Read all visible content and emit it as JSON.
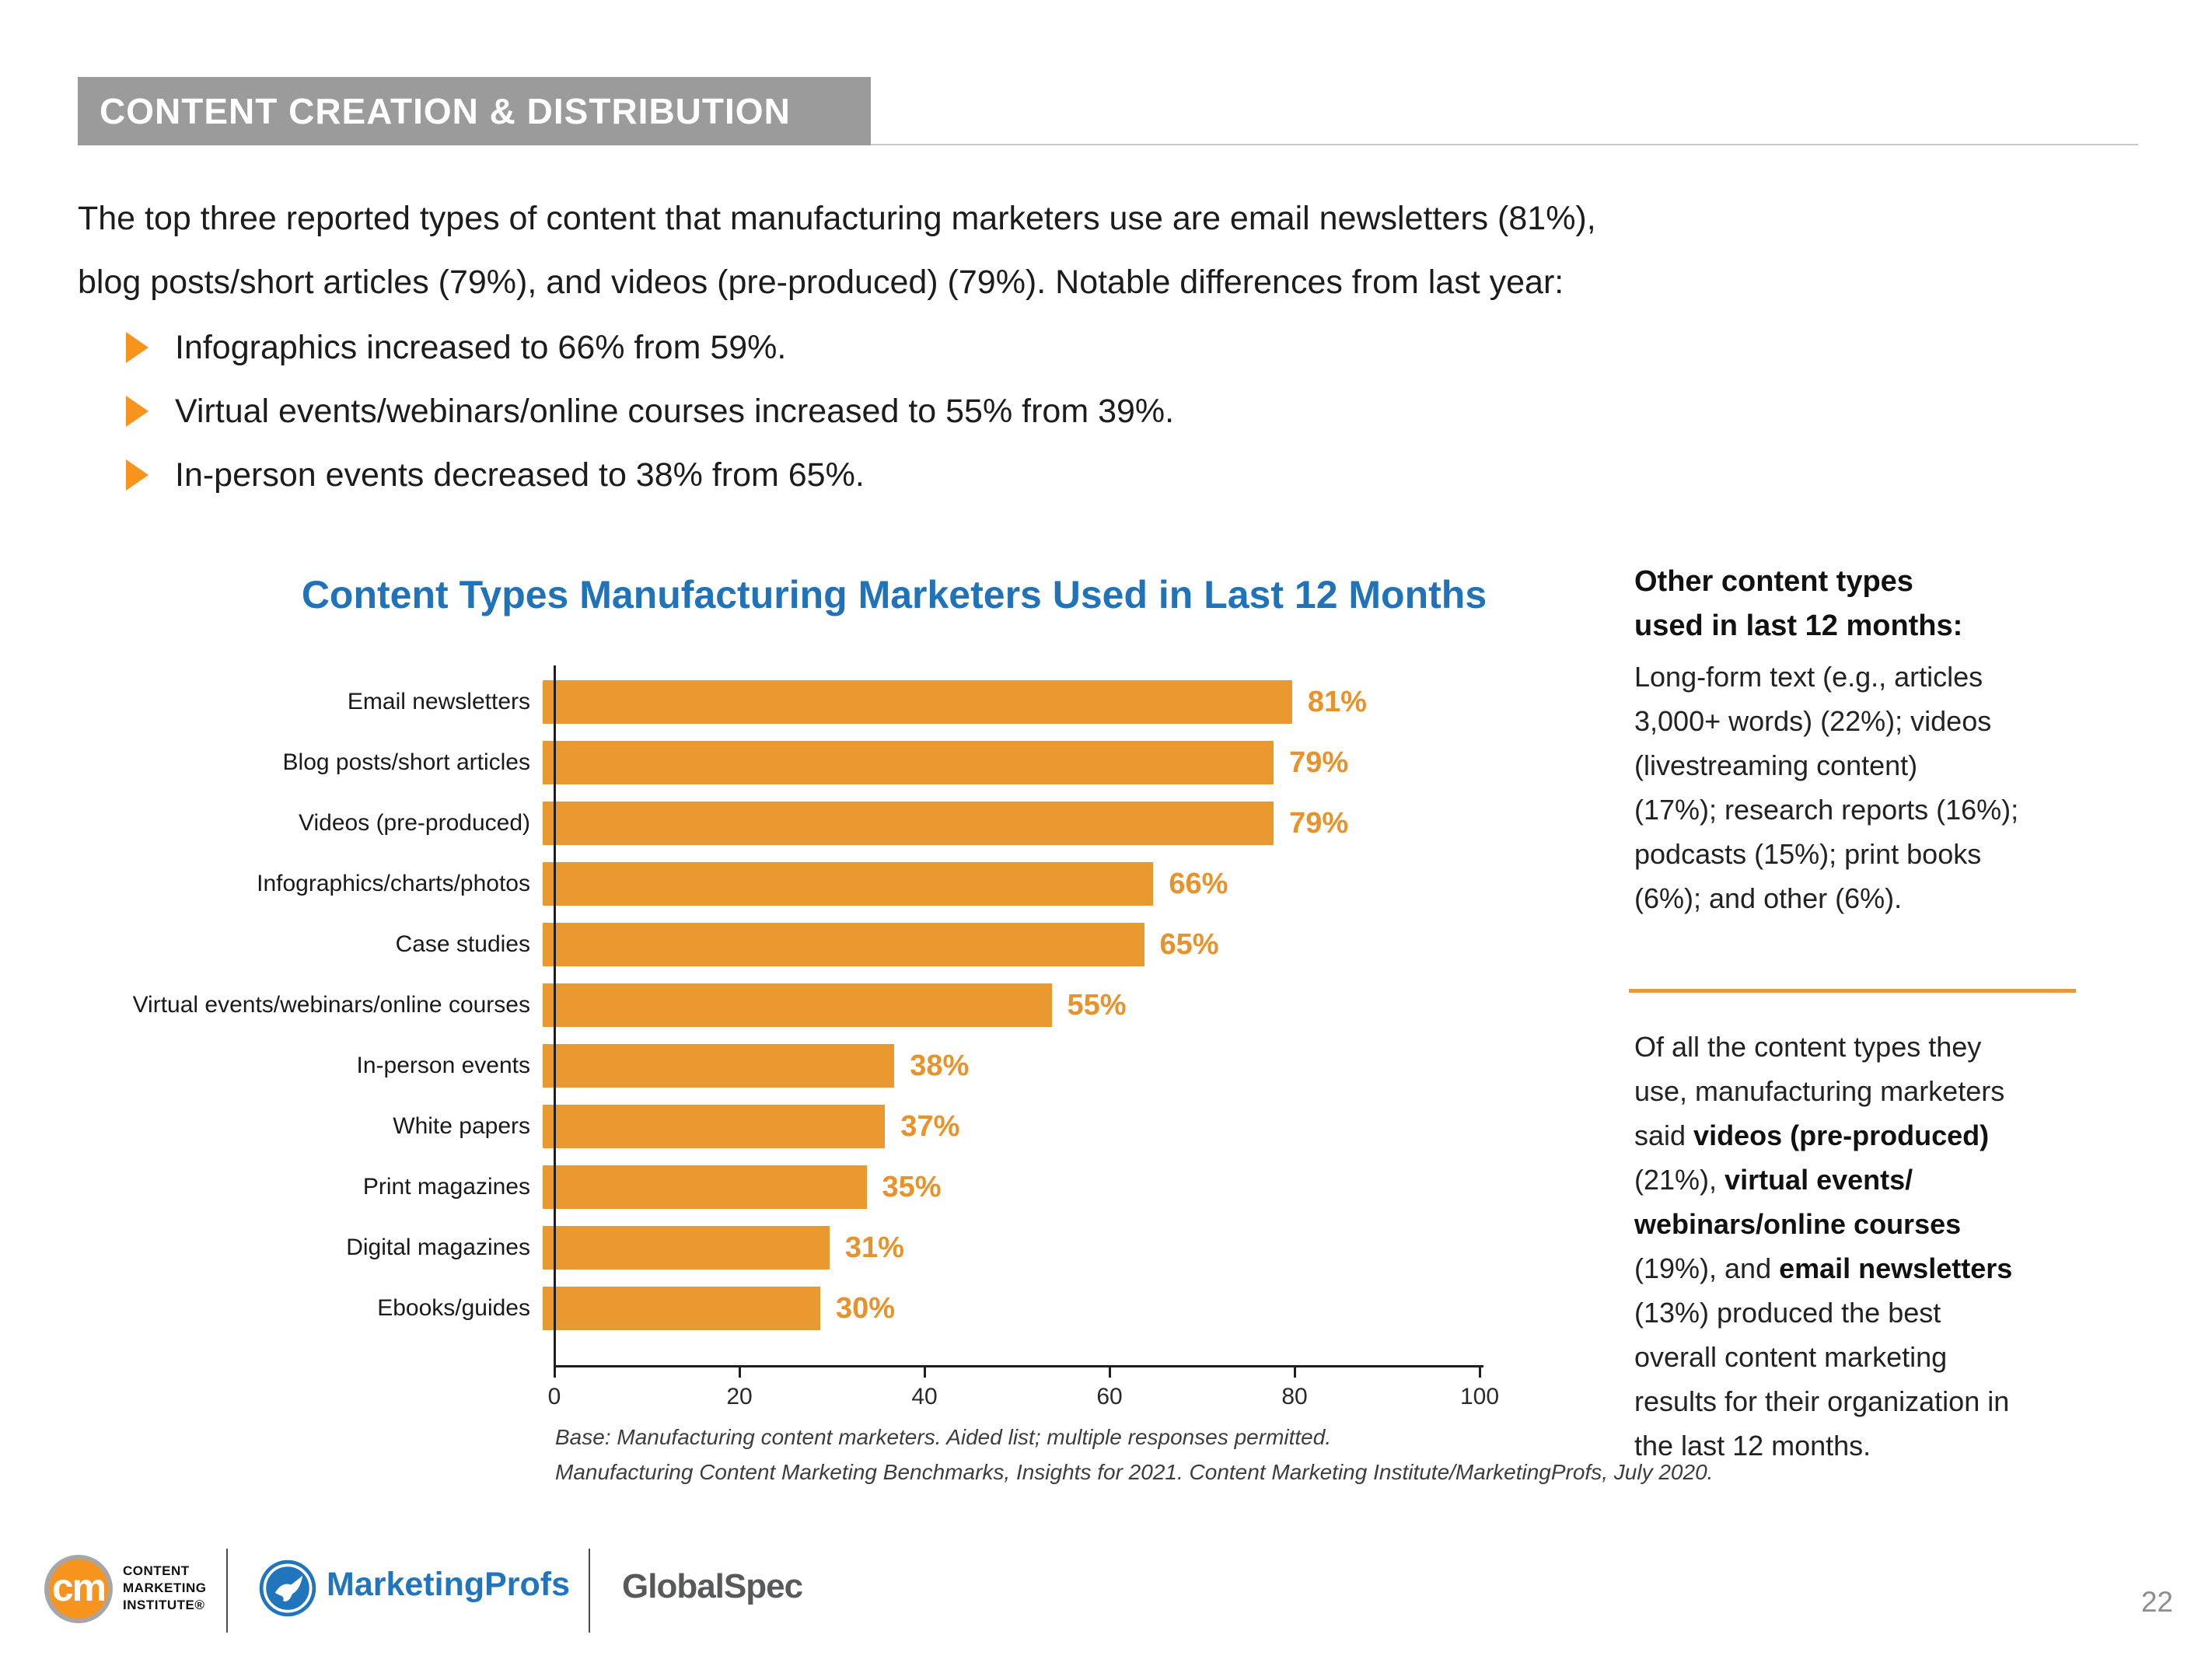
{
  "header": {
    "title": "CONTENT CREATION & DISTRIBUTION"
  },
  "intro_lines": [
    "The top three reported types of content that manufacturing marketers use are email newsletters (81%),",
    "blog posts/short articles (79%), and videos (pre-produced) (79%). Notable differences from last year:"
  ],
  "bullets": [
    "Infographics increased to 66% from 59%.",
    "Virtual events/webinars/online courses increased to 55% from 39%.",
    "In-person events decreased to 38% from 65%."
  ],
  "chart_data": {
    "type": "bar",
    "orientation": "horizontal",
    "title": "Content Types Manufacturing Marketers Used in Last 12 Months",
    "categories": [
      "Email newsletters",
      "Blog posts/short articles",
      "Videos (pre-produced)",
      "Infographics/charts/photos",
      "Case studies",
      "Virtual events/webinars/online courses",
      "In-person events",
      "White papers",
      "Print magazines",
      "Digital magazines",
      "Ebooks/guides"
    ],
    "values": [
      81,
      79,
      79,
      66,
      65,
      55,
      38,
      37,
      35,
      31,
      30
    ],
    "value_labels": [
      "81%",
      "79%",
      "79%",
      "66%",
      "65%",
      "55%",
      "38%",
      "37%",
      "35%",
      "31%",
      "30%"
    ],
    "xlabel": "",
    "ylabel": "",
    "xlim": [
      0,
      100
    ],
    "x_ticks": [
      0,
      20,
      40,
      60,
      80,
      100
    ],
    "grid": false,
    "legend": false,
    "bar_color": "#E9992F",
    "footnote_lines": [
      "Base: Manufacturing content marketers. Aided list; multiple responses permitted.",
      "Manufacturing Content Marketing Benchmarks, Insights for 2021. Content Marketing Institute/MarketingProfs, July 2020."
    ]
  },
  "sidebar": {
    "heading_lines": [
      "Other content types",
      "used in last 12 months:"
    ],
    "para1_lines": [
      "Long-form text (e.g., articles",
      "3,000+ words) (22%); videos",
      "(livestreaming content)",
      "(17%); research reports (16%);",
      "podcasts (15%); print books",
      "(6%); and other (6%)."
    ],
    "para2_lines": [
      [
        {
          "t": "Of all the content types they"
        }
      ],
      [
        {
          "t": "use, manufacturing marketers"
        }
      ],
      [
        {
          "t": "said "
        },
        {
          "t": "videos (pre-produced)",
          "b": true
        }
      ],
      [
        {
          "t": "(21%), "
        },
        {
          "t": "virtual events/",
          "b": true
        }
      ],
      [
        {
          "t": "webinars/online courses",
          "b": true
        }
      ],
      [
        {
          "t": "(19%), and "
        },
        {
          "t": "email newsletters",
          "b": true
        }
      ],
      [
        {
          "t": "(13%) produced the best"
        }
      ],
      [
        {
          "t": "overall content marketing"
        }
      ],
      [
        {
          "t": "results for their organization in"
        }
      ],
      [
        {
          "t": "the last 12 months."
        }
      ]
    ]
  },
  "footer": {
    "cmi_monogram": "cm",
    "cmi_lines": [
      "CONTENT",
      "MARKETING",
      "INSTITUTE®"
    ],
    "marketingprofs_label": "MarketingProfs",
    "globalspec_label": "GlobalSpec"
  },
  "page_number": "22",
  "colors": {
    "accent_orange": "#E9992F",
    "bullet_orange": "#F7941E",
    "title_blue": "#2173B9",
    "header_gray": "#9B9B9B",
    "marketingprofs_blue": "#2175BC",
    "globalspec_gray": "#58595B"
  }
}
